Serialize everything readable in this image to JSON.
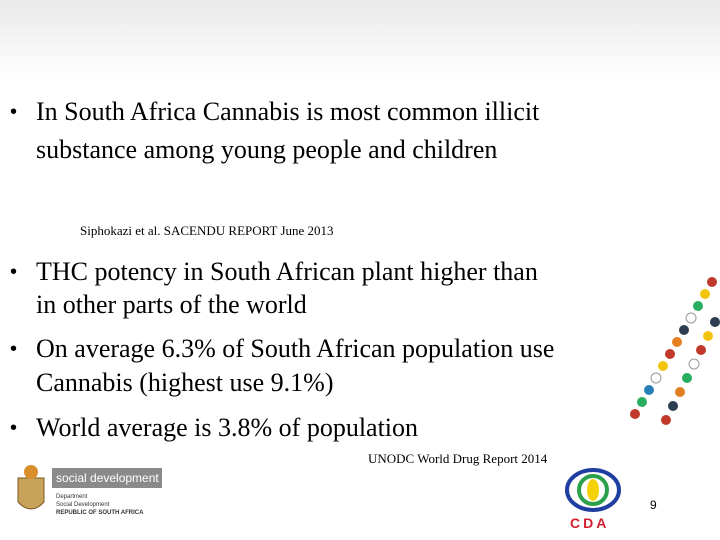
{
  "bullets": [
    {
      "lines": [
        "In South Africa Cannabis is most common illicit",
        "substance among young people and children"
      ]
    },
    {
      "lines": [
        "THC potency in South African plant higher than",
        "in other parts of the world"
      ]
    },
    {
      "lines": [
        "On average 6.3% of South African population use",
        "Cannabis (highest use 9.1%)"
      ]
    },
    {
      "lines": [
        "World average is 3.8% of population"
      ]
    }
  ],
  "citations": [
    "Siphokazi et al. SACENDU REPORT June 2013",
    "UNODC World Drug Report 2014"
  ],
  "footer": {
    "brand": "social development",
    "department": [
      "Department",
      "Social Development",
      "REPUBLIC OF SOUTH AFRICA"
    ],
    "partner": "CDA",
    "page_number": "9"
  }
}
